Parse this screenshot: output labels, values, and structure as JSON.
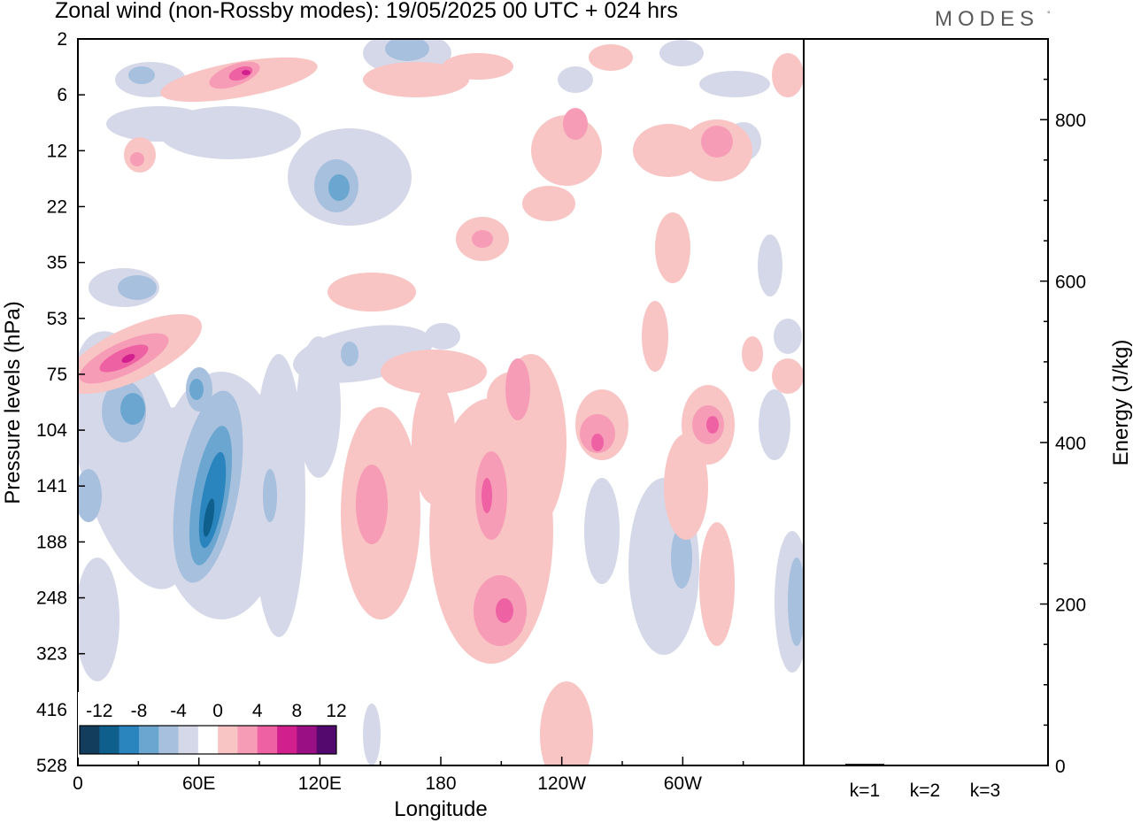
{
  "title": "Zonal wind (non-Rossby modes):  19/05/2025  00 UTC  + 024 hrs",
  "logo": "MODES",
  "chart_data": [
    {
      "type": "heatmap",
      "title": "Zonal wind (non-Rossby modes):  19/05/2025  00 UTC  + 024 hrs",
      "xlabel": "Longitude",
      "ylabel": "Pressure levels (hPa)",
      "x_ticks": [
        "0",
        "60E",
        "120E",
        "180",
        "120W",
        "60W"
      ],
      "y_ticks": [
        "2",
        "6",
        "12",
        "22",
        "35",
        "53",
        "75",
        "104",
        "141",
        "188",
        "248",
        "323",
        "416",
        "528"
      ],
      "colorbar": {
        "labels": [
          "-12",
          "-8",
          "-4",
          "0",
          "4",
          "8",
          "12"
        ],
        "colors": [
          "#123d5c",
          "#0f5f8c",
          "#2a84bd",
          "#6aa6cf",
          "#a7c0de",
          "#d5d8e8",
          "#ffffff",
          "#f8c4c4",
          "#f69cb6",
          "#ee62a4",
          "#d11f8e",
          "#9a0f83",
          "#54096e"
        ]
      },
      "features": [
        {
          "sign": "negative",
          "lon": 65,
          "level": 141,
          "value": -11
        },
        {
          "sign": "negative",
          "lon": 28,
          "level": 104,
          "value": -8
        },
        {
          "sign": "negative",
          "lon": 135,
          "level": 22,
          "value": -6
        },
        {
          "sign": "positive",
          "lon": 25,
          "level": 75,
          "value": 10
        },
        {
          "sign": "positive",
          "lon": 80,
          "level": 6,
          "value": 9
        },
        {
          "sign": "positive",
          "lon": 210,
          "level": 248,
          "value": 9
        },
        {
          "sign": "positive",
          "lon": 198,
          "level": 141,
          "value": 8
        },
        {
          "sign": "positive",
          "lon": 257,
          "level": 104,
          "value": 8
        },
        {
          "sign": "positive",
          "lon": 312,
          "level": 104,
          "value": 7
        }
      ]
    },
    {
      "type": "bar",
      "categories": [
        "k=1",
        "k=2",
        "k=3"
      ],
      "values": [
        2,
        1,
        1
      ],
      "ylabel": "Energy (J/kg)",
      "y_ticks": [
        "0",
        "200",
        "400",
        "600",
        "800"
      ],
      "ylim": [
        0,
        900
      ]
    }
  ]
}
